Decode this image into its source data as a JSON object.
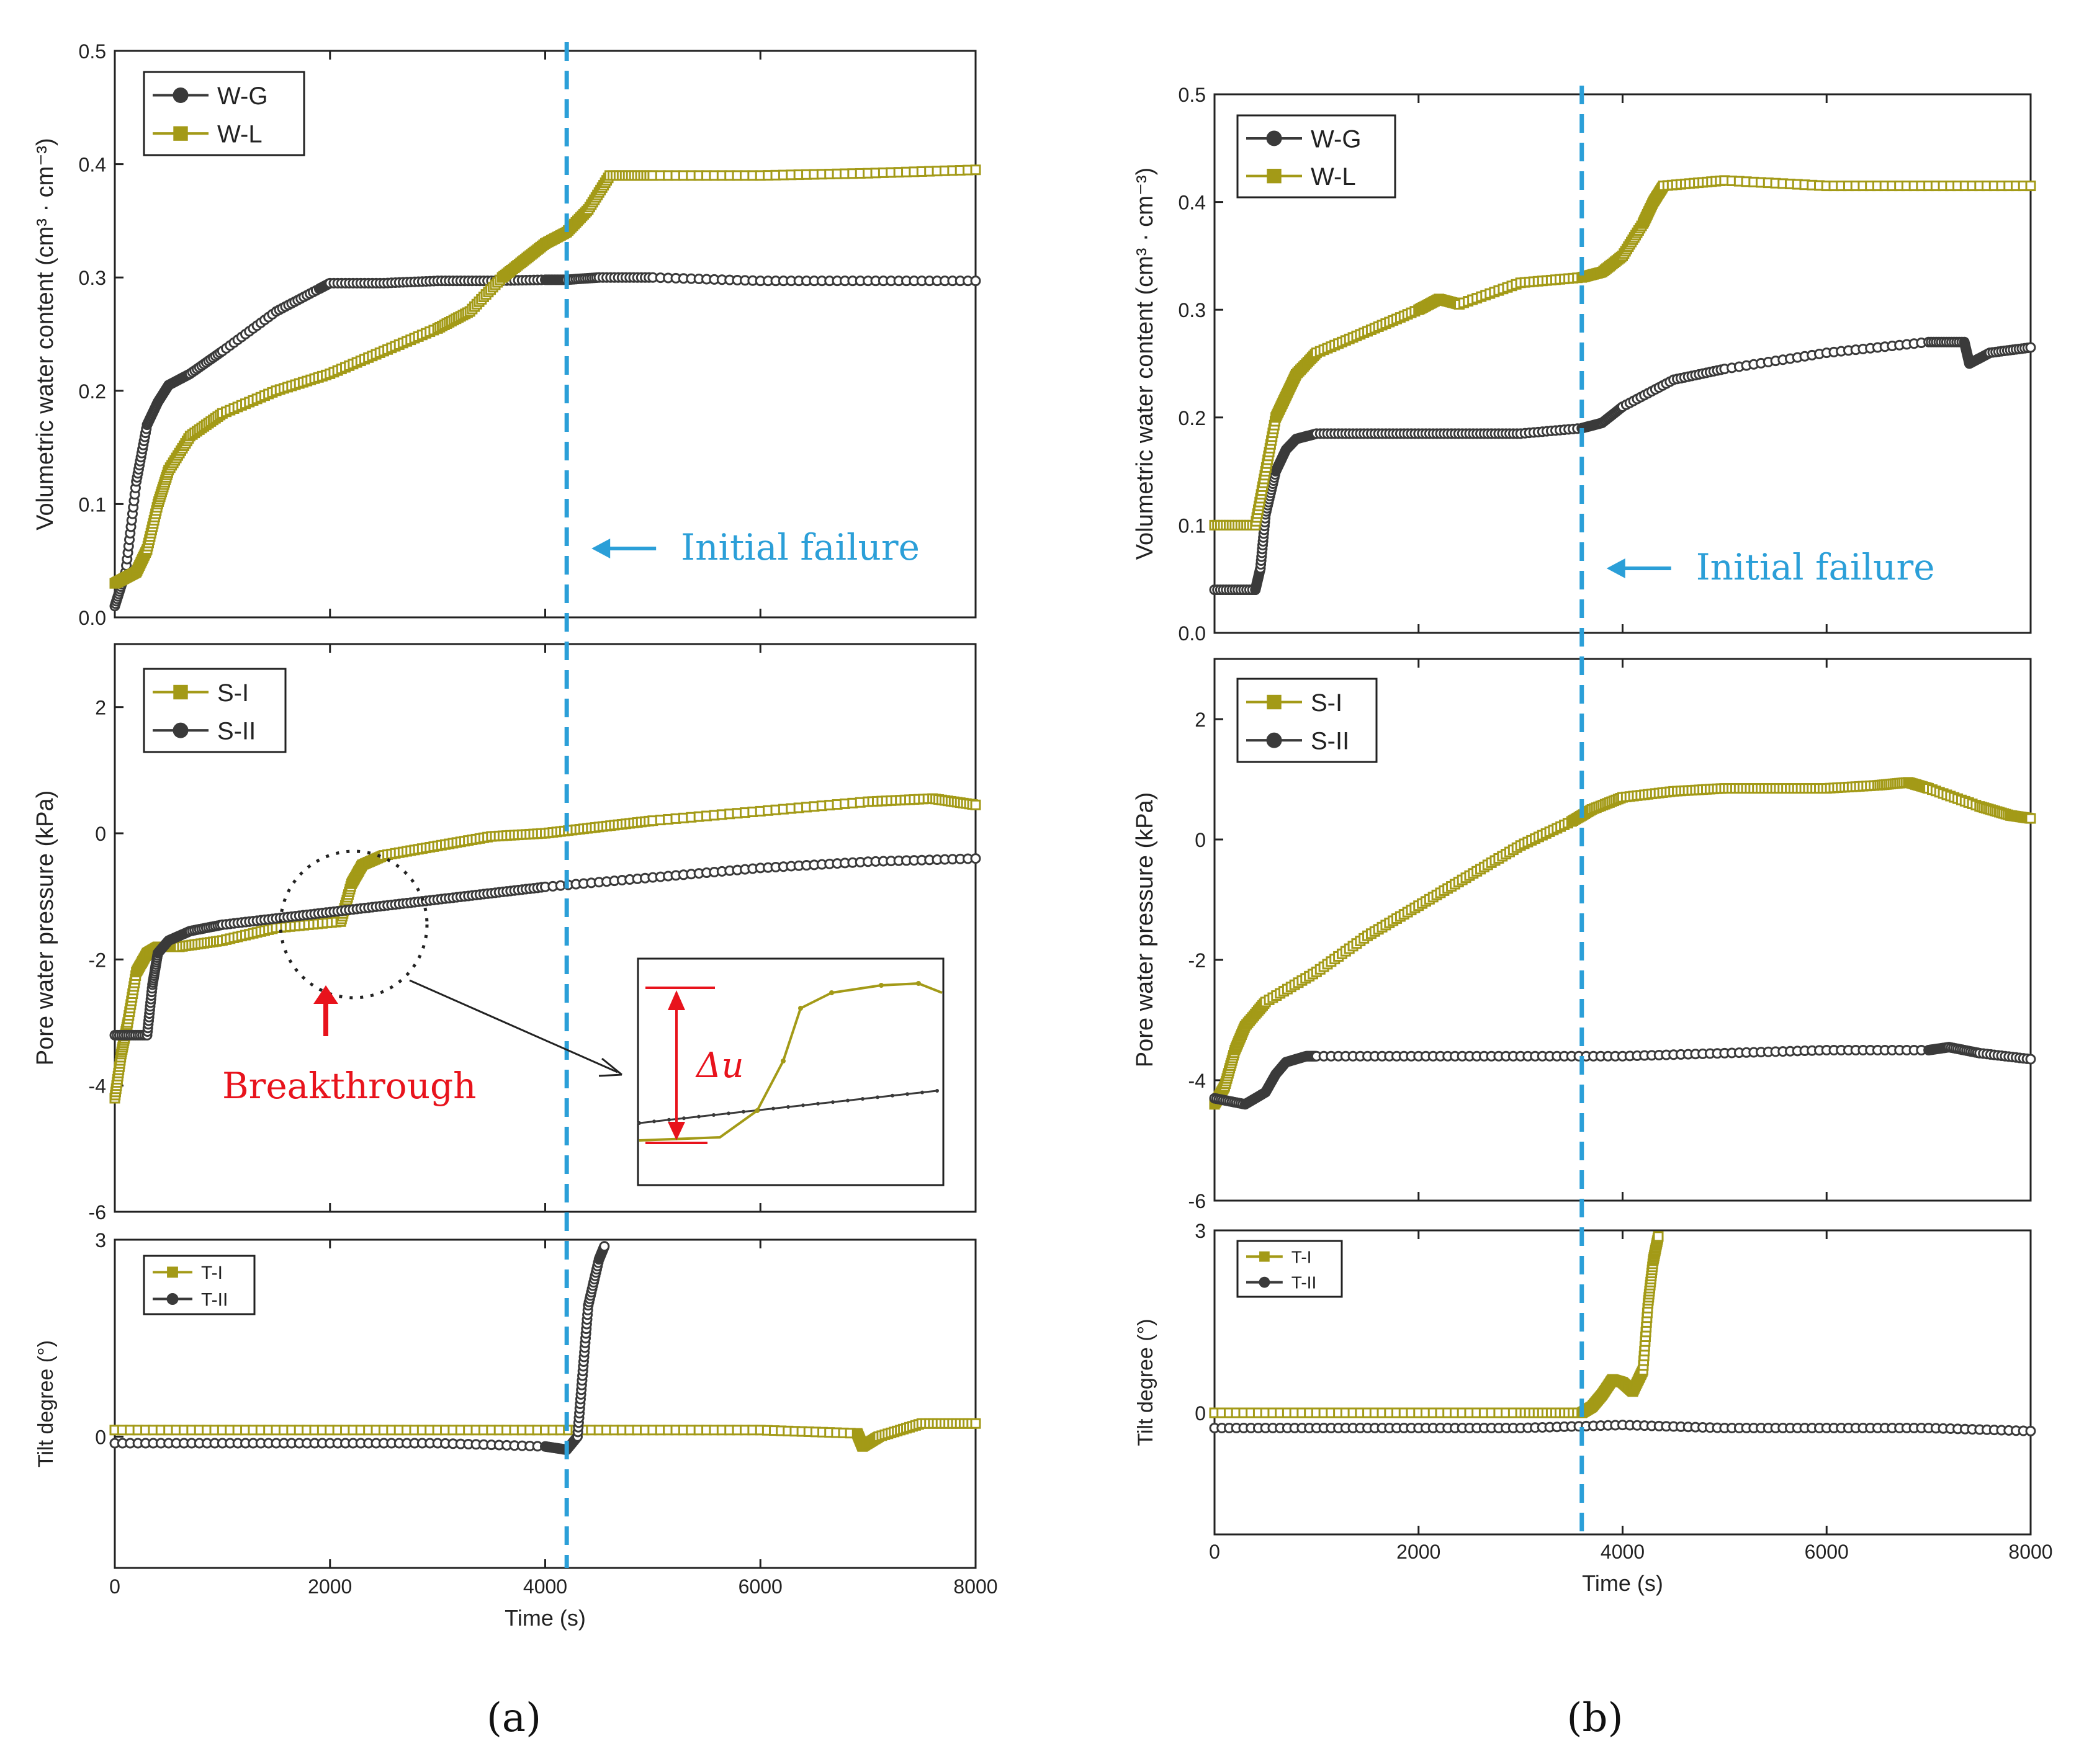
{
  "colors": {
    "olive": "#a39a17",
    "dark": "#3a3a3a",
    "blue": "#2b9fd8",
    "red": "#e8131c"
  },
  "panels": [
    {
      "id": "a",
      "caption": "(a)",
      "failure_x": 4200,
      "xlabel": "Time (s)",
      "x_ticks": [
        "0",
        "2000",
        "4000",
        "6000",
        "8000"
      ],
      "annotations": {
        "initial_failure": "Initial failure",
        "breakthrough": "Breakthrough",
        "delta_u": "Δu"
      }
    },
    {
      "id": "b",
      "caption": "(b)",
      "failure_x": 3600,
      "xlabel": "Time (s)",
      "x_ticks": [
        "0",
        "2000",
        "4000",
        "6000",
        "8000"
      ],
      "annotations": {
        "initial_failure": "Initial failure"
      }
    }
  ],
  "chart_data": [
    {
      "panel": "a",
      "subplot": "volumetric water content",
      "type": "line",
      "ylabel": "Volumetric water content (cm³ · cm⁻³)",
      "xlim": [
        0,
        8000
      ],
      "ylim": [
        0,
        0.5
      ],
      "y_ticks": [
        "0.0",
        "0.1",
        "0.2",
        "0.3",
        "0.4",
        "0.5"
      ],
      "series": [
        {
          "name": "W-G",
          "color": "dark",
          "marker": "circle",
          "x": [
            0,
            100,
            200,
            300,
            400,
            500,
            700,
            1000,
            1500,
            1900,
            2000,
            2500,
            3000,
            3500,
            4000,
            4200,
            4500,
            5000,
            6000,
            7000,
            8000
          ],
          "y": [
            0.01,
            0.04,
            0.12,
            0.17,
            0.19,
            0.205,
            0.215,
            0.235,
            0.27,
            0.29,
            0.295,
            0.295,
            0.297,
            0.297,
            0.298,
            0.298,
            0.3,
            0.3,
            0.297,
            0.297,
            0.297
          ]
        },
        {
          "name": "W-L",
          "color": "olive",
          "marker": "square",
          "x": [
            0,
            100,
            200,
            300,
            400,
            500,
            700,
            1000,
            1500,
            2000,
            2500,
            3000,
            3300,
            3600,
            3800,
            4000,
            4200,
            4400,
            4600,
            5000,
            6000,
            7000,
            8000
          ],
          "y": [
            0.03,
            0.035,
            0.04,
            0.06,
            0.1,
            0.13,
            0.16,
            0.18,
            0.2,
            0.215,
            0.235,
            0.255,
            0.27,
            0.3,
            0.315,
            0.33,
            0.34,
            0.36,
            0.39,
            0.39,
            0.39,
            0.392,
            0.395
          ]
        }
      ]
    },
    {
      "panel": "a",
      "subplot": "pore water pressure",
      "type": "line",
      "ylabel": "Pore water pressure (kPa)",
      "xlim": [
        0,
        8000
      ],
      "ylim": [
        -6,
        3
      ],
      "y_ticks": [
        "-6",
        "-4",
        "-2",
        "0",
        "2"
      ],
      "series": [
        {
          "name": "S-I",
          "color": "olive",
          "marker": "square",
          "x": [
            0,
            60,
            120,
            200,
            300,
            400,
            600,
            1000,
            1500,
            2100,
            2200,
            2300,
            2500,
            3000,
            3500,
            4000,
            4500,
            5000,
            6000,
            7000,
            7600,
            8000
          ],
          "y": [
            -4.2,
            -3.5,
            -3,
            -2.2,
            -1.9,
            -1.8,
            -1.8,
            -1.7,
            -1.5,
            -1.4,
            -0.8,
            -0.5,
            -0.35,
            -0.2,
            -0.05,
            0,
            0.1,
            0.2,
            0.35,
            0.5,
            0.55,
            0.45
          ]
        },
        {
          "name": "S-II",
          "color": "dark",
          "marker": "circle",
          "x": [
            0,
            300,
            350,
            400,
            500,
            700,
            1000,
            1500,
            2000,
            2500,
            3000,
            3500,
            4000,
            5000,
            6000,
            7000,
            8000
          ],
          "y": [
            -3.2,
            -3.2,
            -2.4,
            -1.9,
            -1.7,
            -1.55,
            -1.45,
            -1.35,
            -1.25,
            -1.15,
            -1.05,
            -0.95,
            -0.85,
            -0.7,
            -0.55,
            -0.45,
            -0.4
          ]
        }
      ]
    },
    {
      "panel": "a",
      "subplot": "tilt degree",
      "type": "line",
      "ylabel": "Tilt degree (°)",
      "xlim": [
        0,
        8000
      ],
      "ylim": [
        -2,
        3
      ],
      "y_ticks": [
        "0",
        "3"
      ],
      "series": [
        {
          "name": "T-I",
          "color": "olive",
          "marker": "square",
          "x": [
            0,
            1000,
            2000,
            3000,
            4000,
            5000,
            6000,
            6900,
            6950,
            7100,
            7500,
            8000
          ],
          "y": [
            0.1,
            0.1,
            0.1,
            0.1,
            0.1,
            0.1,
            0.1,
            0.05,
            -0.15,
            0,
            0.2,
            0.2
          ]
        },
        {
          "name": "T-II",
          "color": "dark",
          "marker": "circle",
          "x": [
            0,
            1000,
            2000,
            3000,
            4000,
            4200,
            4300,
            4350,
            4400,
            4500,
            4550
          ],
          "y": [
            -0.1,
            -0.1,
            -0.1,
            -0.1,
            -0.15,
            -0.2,
            0,
            1,
            2,
            2.7,
            2.9
          ]
        }
      ]
    },
    {
      "panel": "b",
      "subplot": "volumetric water content",
      "type": "line",
      "ylabel": "Volumetric water content (cm³ · cm⁻³)",
      "xlim": [
        0,
        8000
      ],
      "ylim": [
        0,
        0.5
      ],
      "y_ticks": [
        "0.0",
        "0.1",
        "0.2",
        "0.3",
        "0.4",
        "0.5"
      ],
      "series": [
        {
          "name": "W-G",
          "color": "dark",
          "marker": "circle",
          "x": [
            0,
            400,
            450,
            500,
            600,
            700,
            800,
            1000,
            1500,
            2000,
            2500,
            3000,
            3600,
            3800,
            4000,
            4500,
            5000,
            6000,
            7000,
            7350,
            7400,
            7600,
            8000
          ],
          "y": [
            0.04,
            0.04,
            0.06,
            0.11,
            0.15,
            0.17,
            0.18,
            0.185,
            0.185,
            0.185,
            0.185,
            0.185,
            0.19,
            0.195,
            0.21,
            0.235,
            0.245,
            0.26,
            0.27,
            0.27,
            0.25,
            0.26,
            0.265
          ]
        },
        {
          "name": "W-L",
          "color": "olive",
          "marker": "square",
          "x": [
            0,
            400,
            500,
            600,
            700,
            800,
            1000,
            1500,
            2000,
            2200,
            2400,
            3000,
            3600,
            3800,
            4000,
            4200,
            4300,
            4400,
            5000,
            6000,
            7000,
            8000
          ],
          "y": [
            0.1,
            0.1,
            0.15,
            0.2,
            0.22,
            0.24,
            0.26,
            0.28,
            0.3,
            0.31,
            0.305,
            0.325,
            0.33,
            0.335,
            0.35,
            0.38,
            0.4,
            0.415,
            0.42,
            0.415,
            0.415,
            0.415
          ]
        }
      ]
    },
    {
      "panel": "b",
      "subplot": "pore water pressure",
      "type": "line",
      "ylabel": "Pore water pressure (kPa)",
      "xlim": [
        0,
        8000
      ],
      "ylim": [
        -6,
        3
      ],
      "y_ticks": [
        "-6",
        "-4",
        "-2",
        "0",
        "2"
      ],
      "series": [
        {
          "name": "S-I",
          "color": "olive",
          "marker": "square",
          "x": [
            0,
            100,
            200,
            300,
            500,
            1000,
            1500,
            2000,
            2500,
            3000,
            3500,
            3700,
            4000,
            4500,
            5000,
            5500,
            6000,
            6500,
            6800,
            7000,
            7500,
            7800,
            8000
          ],
          "y": [
            -4.4,
            -4.1,
            -3.5,
            -3.1,
            -2.7,
            -2.2,
            -1.6,
            -1.1,
            -0.6,
            -0.1,
            0.3,
            0.5,
            0.7,
            0.8,
            0.85,
            0.85,
            0.85,
            0.9,
            0.95,
            0.85,
            0.55,
            0.4,
            0.35
          ]
        },
        {
          "name": "S-II",
          "color": "dark",
          "marker": "circle",
          "x": [
            0,
            300,
            500,
            600,
            700,
            900,
            1000,
            2000,
            3000,
            4000,
            5000,
            6000,
            7000,
            7200,
            7500,
            8000
          ],
          "y": [
            -4.3,
            -4.4,
            -4.2,
            -3.9,
            -3.7,
            -3.6,
            -3.6,
            -3.6,
            -3.6,
            -3.6,
            -3.55,
            -3.5,
            -3.5,
            -3.45,
            -3.55,
            -3.65
          ]
        }
      ]
    },
    {
      "panel": "b",
      "subplot": "tilt degree",
      "type": "line",
      "ylabel": "Tilt degree (°)",
      "xlim": [
        0,
        8000
      ],
      "ylim": [
        -2,
        3
      ],
      "y_ticks": [
        "0",
        "3"
      ],
      "series": [
        {
          "name": "T-I",
          "color": "olive",
          "marker": "square",
          "x": [
            0,
            1000,
            2000,
            3000,
            3600,
            3700,
            3800,
            3900,
            4000,
            4100,
            4200,
            4250,
            4300,
            4350
          ],
          "y": [
            0,
            0,
            0,
            0,
            0,
            0.1,
            0.3,
            0.55,
            0.5,
            0.35,
            0.7,
            1.8,
            2.5,
            2.9
          ]
        },
        {
          "name": "T-II",
          "color": "dark",
          "marker": "circle",
          "x": [
            0,
            1000,
            2000,
            3000,
            4000,
            5000,
            6000,
            7000,
            8000
          ],
          "y": [
            -0.25,
            -0.25,
            -0.25,
            -0.25,
            -0.2,
            -0.25,
            -0.25,
            -0.25,
            -0.3
          ]
        }
      ]
    }
  ]
}
